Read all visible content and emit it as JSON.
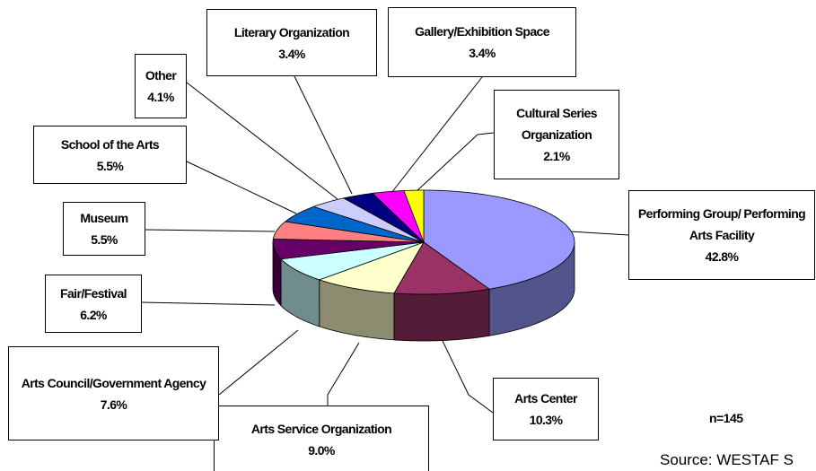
{
  "chart_data": {
    "type": "pie",
    "categories": [
      "Performing Group/ Performing Arts Facility",
      "Arts Center",
      "Arts Service Organization",
      "Arts Council/Government Agency",
      "Fair/Festival",
      "Museum",
      "School of the Arts",
      "Other",
      "Literary Organization",
      "Gallery/Exhibition Space",
      "Cultural Series Organization"
    ],
    "values": [
      42.8,
      10.3,
      9.0,
      7.6,
      6.2,
      5.5,
      5.5,
      4.1,
      3.4,
      3.4,
      2.1
    ],
    "value_labels": [
      "42.8%",
      "10.3%",
      "9.0%",
      "7.6%",
      "6.2%",
      "5.5%",
      "5.5%",
      "4.1%",
      "3.4%",
      "3.4%",
      "2.1%"
    ],
    "colors": [
      "#9999ff",
      "#993366",
      "#ffffcc",
      "#ccffff",
      "#660066",
      "#ff8080",
      "#0066cc",
      "#ccccff",
      "#000080",
      "#ff00ff",
      "#ffff00"
    ],
    "annotations": [
      "n=145",
      "Source: WESTAF S"
    ]
  }
}
